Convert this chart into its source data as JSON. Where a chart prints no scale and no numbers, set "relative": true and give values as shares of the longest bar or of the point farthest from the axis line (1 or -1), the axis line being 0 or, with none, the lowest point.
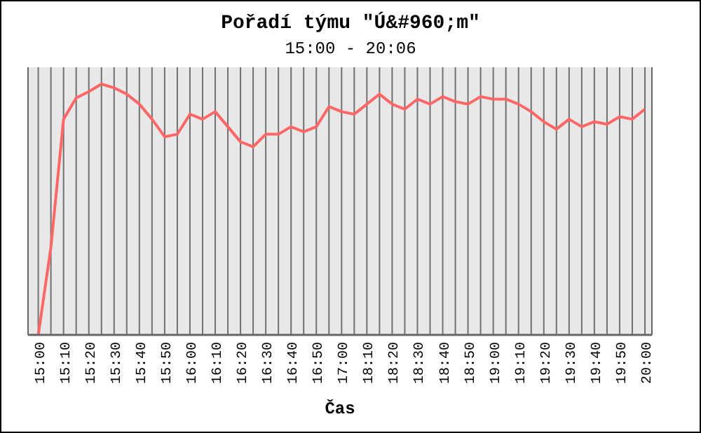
{
  "chart_data": {
    "type": "line",
    "title": "Pořadí týmu \"Ú&#960;m\"",
    "subtitle": "15:00 - 20:06",
    "xlabel": "Čas",
    "relative": true,
    "grid": "x",
    "marker": "none",
    "line_style": "solid",
    "categories": [
      "15:00",
      null,
      "15:10",
      null,
      "15:20",
      null,
      "15:30",
      null,
      "15:40",
      null,
      "15:50",
      null,
      "16:00",
      null,
      "16:10",
      null,
      "16:20",
      null,
      "16:30",
      null,
      "16:40",
      null,
      "16:50",
      null,
      "17:00",
      null,
      "18:10",
      null,
      "18:20",
      null,
      "18:30",
      null,
      "18:40",
      null,
      "18:50",
      null,
      "19:00",
      null,
      "19:10",
      null,
      "19:20",
      null,
      "19:30",
      null,
      "19:40",
      null,
      "19:50",
      null,
      "20:00"
    ],
    "series": [
      {
        "color": "#ff6666",
        "values": [
          0,
          0.35,
          0.86,
          0.945,
          0.97,
          1,
          0.985,
          0.96,
          0.92,
          0.86,
          0.79,
          0.8,
          0.88,
          0.86,
          0.89,
          0.83,
          0.77,
          0.75,
          0.8,
          0.8,
          0.83,
          0.81,
          0.83,
          0.91,
          0.89,
          0.88,
          0.92,
          0.96,
          0.92,
          0.9,
          0.94,
          0.92,
          0.95,
          0.93,
          0.92,
          0.95,
          0.94,
          0.94,
          0.92,
          0.89,
          0.85,
          0.82,
          0.86,
          0.83,
          0.85,
          0.84,
          0.87,
          0.86,
          0.9
        ]
      }
    ]
  }
}
